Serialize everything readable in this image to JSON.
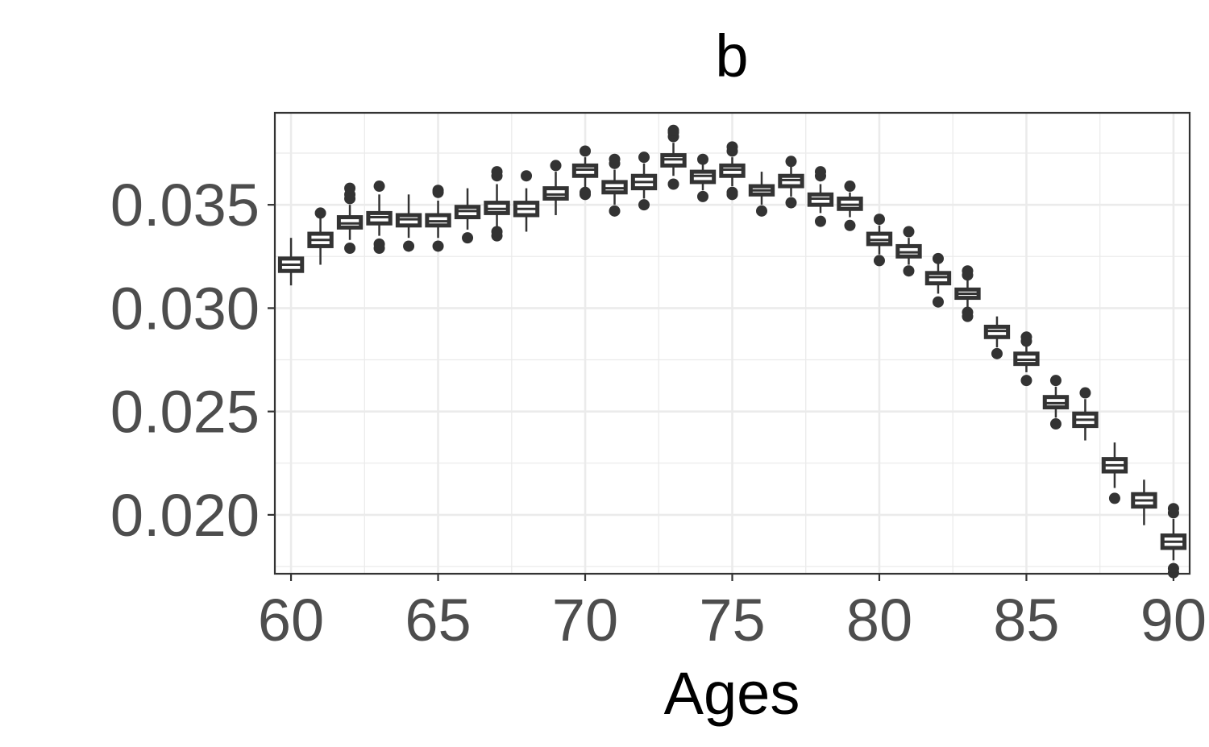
{
  "chart_data": {
    "type": "boxplot",
    "title": "b",
    "xlabel": "Ages",
    "ylabel": "",
    "xlim": [
      59.45,
      90.55
    ],
    "ylim": [
      0.01715,
      0.03945
    ],
    "x_ticks": [
      60,
      65,
      70,
      75,
      80,
      85,
      90
    ],
    "x_tick_labels": [
      "60",
      "65",
      "70",
      "75",
      "80",
      "85",
      "90"
    ],
    "y_ticks": [
      0.02,
      0.025,
      0.03,
      0.035
    ],
    "y_tick_labels": [
      "0.020",
      "0.025",
      "0.030",
      "0.035"
    ],
    "grid": true,
    "colors": {
      "box_fill": "#ffffff",
      "box_line": "#333333",
      "grid": "#ebebeb",
      "tick_text": "#4d4d4d"
    },
    "boxes": [
      {
        "age": 60,
        "whisker_low": 0.0311,
        "q1": 0.0318,
        "median": 0.0321,
        "q3": 0.0324,
        "whisker_high": 0.0334,
        "outliers": []
      },
      {
        "age": 61,
        "whisker_low": 0.0321,
        "q1": 0.033,
        "median": 0.0333,
        "q3": 0.0336,
        "whisker_high": 0.0344,
        "outliers": [
          0.0346
        ]
      },
      {
        "age": 62,
        "whisker_low": 0.0333,
        "q1": 0.0339,
        "median": 0.0341,
        "q3": 0.0344,
        "whisker_high": 0.035,
        "outliers": [
          0.0353,
          0.0355,
          0.0358,
          0.0329
        ]
      },
      {
        "age": 63,
        "whisker_low": 0.0335,
        "q1": 0.0341,
        "median": 0.0344,
        "q3": 0.0346,
        "whisker_high": 0.0355,
        "outliers": [
          0.0359,
          0.0329,
          0.0331
        ]
      },
      {
        "age": 64,
        "whisker_low": 0.0334,
        "q1": 0.034,
        "median": 0.0343,
        "q3": 0.0345,
        "whisker_high": 0.0355,
        "outliers": [
          0.033
        ]
      },
      {
        "age": 65,
        "whisker_low": 0.0334,
        "q1": 0.034,
        "median": 0.0342,
        "q3": 0.0345,
        "whisker_high": 0.0352,
        "outliers": [
          0.0356,
          0.0357,
          0.033
        ]
      },
      {
        "age": 66,
        "whisker_low": 0.0338,
        "q1": 0.0344,
        "median": 0.0347,
        "q3": 0.0349,
        "whisker_high": 0.0358,
        "outliers": [
          0.0334
        ]
      },
      {
        "age": 67,
        "whisker_low": 0.0339,
        "q1": 0.0346,
        "median": 0.0348,
        "q3": 0.0351,
        "whisker_high": 0.036,
        "outliers": [
          0.0364,
          0.0366,
          0.0335,
          0.0337
        ]
      },
      {
        "age": 68,
        "whisker_low": 0.0337,
        "q1": 0.0345,
        "median": 0.0348,
        "q3": 0.0351,
        "whisker_high": 0.0358,
        "outliers": [
          0.0364
        ]
      },
      {
        "age": 69,
        "whisker_low": 0.0345,
        "q1": 0.0353,
        "median": 0.0355,
        "q3": 0.0358,
        "whisker_high": 0.0366,
        "outliers": [
          0.0369
        ]
      },
      {
        "age": 70,
        "whisker_low": 0.0358,
        "q1": 0.0364,
        "median": 0.0367,
        "q3": 0.0369,
        "whisker_high": 0.0373,
        "outliers": [
          0.0376,
          0.0355,
          0.0356
        ]
      },
      {
        "age": 71,
        "whisker_low": 0.035,
        "q1": 0.0356,
        "median": 0.0358,
        "q3": 0.0361,
        "whisker_high": 0.0367,
        "outliers": [
          0.037,
          0.0372,
          0.0347
        ]
      },
      {
        "age": 72,
        "whisker_low": 0.0353,
        "q1": 0.0358,
        "median": 0.0361,
        "q3": 0.0364,
        "whisker_high": 0.037,
        "outliers": [
          0.0373,
          0.035
        ]
      },
      {
        "age": 73,
        "whisker_low": 0.0364,
        "q1": 0.0369,
        "median": 0.0372,
        "q3": 0.0374,
        "whisker_high": 0.038,
        "outliers": [
          0.0383,
          0.0385,
          0.0386,
          0.036
        ]
      },
      {
        "age": 74,
        "whisker_low": 0.0357,
        "q1": 0.0361,
        "median": 0.0364,
        "q3": 0.0366,
        "whisker_high": 0.037,
        "outliers": [
          0.0372,
          0.0354
        ]
      },
      {
        "age": 75,
        "whisker_low": 0.0359,
        "q1": 0.0364,
        "median": 0.0367,
        "q3": 0.0369,
        "whisker_high": 0.0373,
        "outliers": [
          0.0376,
          0.0378,
          0.0356,
          0.0355
        ]
      },
      {
        "age": 76,
        "whisker_low": 0.035,
        "q1": 0.0355,
        "median": 0.0357,
        "q3": 0.0359,
        "whisker_high": 0.0366,
        "outliers": [
          0.0347
        ]
      },
      {
        "age": 77,
        "whisker_low": 0.0354,
        "q1": 0.0359,
        "median": 0.0362,
        "q3": 0.0364,
        "whisker_high": 0.0369,
        "outliers": [
          0.0371,
          0.0351
        ]
      },
      {
        "age": 78,
        "whisker_low": 0.0346,
        "q1": 0.035,
        "median": 0.0353,
        "q3": 0.0355,
        "whisker_high": 0.036,
        "outliers": [
          0.0364,
          0.0366,
          0.0342
        ]
      },
      {
        "age": 79,
        "whisker_low": 0.0344,
        "q1": 0.0348,
        "median": 0.035,
        "q3": 0.0353,
        "whisker_high": 0.0356,
        "outliers": [
          0.0359,
          0.034
        ]
      },
      {
        "age": 80,
        "whisker_low": 0.0326,
        "q1": 0.0331,
        "median": 0.0333,
        "q3": 0.0336,
        "whisker_high": 0.034,
        "outliers": [
          0.0343,
          0.0323
        ]
      },
      {
        "age": 81,
        "whisker_low": 0.0321,
        "q1": 0.0325,
        "median": 0.0327,
        "q3": 0.033,
        "whisker_high": 0.0334,
        "outliers": [
          0.0337,
          0.0318
        ]
      },
      {
        "age": 82,
        "whisker_low": 0.0307,
        "q1": 0.0312,
        "median": 0.0315,
        "q3": 0.0317,
        "whisker_high": 0.0322,
        "outliers": [
          0.0324,
          0.0303
        ]
      },
      {
        "age": 83,
        "whisker_low": 0.03,
        "q1": 0.0305,
        "median": 0.0307,
        "q3": 0.0309,
        "whisker_high": 0.0314,
        "outliers": [
          0.0316,
          0.0318,
          0.0298,
          0.0296
        ]
      },
      {
        "age": 84,
        "whisker_low": 0.0281,
        "q1": 0.0286,
        "median": 0.0289,
        "q3": 0.0291,
        "whisker_high": 0.0296,
        "outliers": [
          0.0278
        ]
      },
      {
        "age": 85,
        "whisker_low": 0.0269,
        "q1": 0.0273,
        "median": 0.0275,
        "q3": 0.0278,
        "whisker_high": 0.0282,
        "outliers": [
          0.0284,
          0.0286,
          0.0265
        ]
      },
      {
        "age": 86,
        "whisker_low": 0.0247,
        "q1": 0.0252,
        "median": 0.0254,
        "q3": 0.0257,
        "whisker_high": 0.0262,
        "outliers": [
          0.0265,
          0.0244
        ]
      },
      {
        "age": 87,
        "whisker_low": 0.0236,
        "q1": 0.0243,
        "median": 0.0246,
        "q3": 0.0249,
        "whisker_high": 0.0256,
        "outliers": [
          0.0259
        ]
      },
      {
        "age": 88,
        "whisker_low": 0.0213,
        "q1": 0.0221,
        "median": 0.0224,
        "q3": 0.0227,
        "whisker_high": 0.0235,
        "outliers": [
          0.0208
        ]
      },
      {
        "age": 89,
        "whisker_low": 0.0195,
        "q1": 0.0204,
        "median": 0.0207,
        "q3": 0.021,
        "whisker_high": 0.0217,
        "outliers": []
      },
      {
        "age": 90,
        "whisker_low": 0.0178,
        "q1": 0.0184,
        "median": 0.0187,
        "q3": 0.019,
        "whisker_high": 0.0198,
        "outliers": [
          0.0201,
          0.0203,
          0.0174,
          0.0172
        ]
      }
    ]
  }
}
